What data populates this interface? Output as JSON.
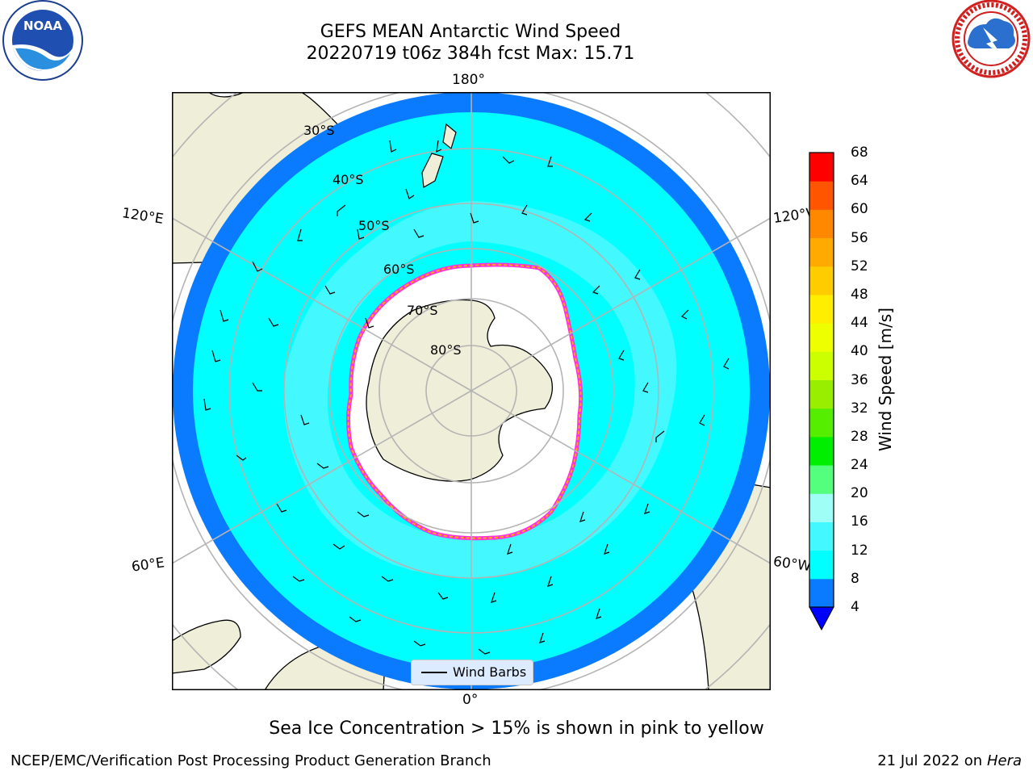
{
  "title": {
    "line1": "GEFS MEAN Antarctic Wind Speed",
    "line2": "20220719 t06z 384h fcst   Max: 15.71"
  },
  "logos": {
    "left": {
      "icon": "noaa-logo-icon",
      "text": "NOAA"
    },
    "right": {
      "icon": "nws-logo-icon"
    }
  },
  "map": {
    "projection": "south-polar-stereographic",
    "lon_labels": {
      "top": "180°",
      "bottom": "0°",
      "upper_left": "120°E",
      "upper_right": "120°W",
      "lower_left": "60°E",
      "lower_right": "60°W"
    },
    "lat_labels": [
      "30°S",
      "40°S",
      "50°S",
      "60°S",
      "70°S",
      "80°S"
    ],
    "colors": {
      "land": "#eeeed9",
      "ocean_outside": "#ffffff",
      "ice_interior": "#ffffff",
      "gridlines": "#b4b4b4",
      "ice_edge": "#ff33dd",
      "ice_edge_inner": "#ffaa00"
    },
    "legend": {
      "label": "Wind Barbs"
    }
  },
  "colorbar": {
    "title": "Wind Speed [m/s]",
    "ticks": [
      "4",
      "8",
      "12",
      "16",
      "20",
      "24",
      "28",
      "32",
      "36",
      "40",
      "44",
      "48",
      "52",
      "56",
      "60",
      "64",
      "68"
    ],
    "colors": [
      "#0a7aff",
      "#00ffff",
      "#44f8ff",
      "#9ffff6",
      "#55ff7e",
      "#00ee00",
      "#55ee00",
      "#99ee00",
      "#ccff00",
      "#eeff00",
      "#ffee00",
      "#ffcc00",
      "#ffaa00",
      "#ff8800",
      "#ff5500",
      "#ff0000"
    ],
    "under_color": "#0000ff"
  },
  "caption": "Sea Ice Concentration > 15% is shown in pink to yellow",
  "footer": {
    "left": "NCEP/EMC/Verification Post Processing Product Generation Branch",
    "right_date": "21 Jul 2022 on ",
    "right_host": "Hera"
  }
}
